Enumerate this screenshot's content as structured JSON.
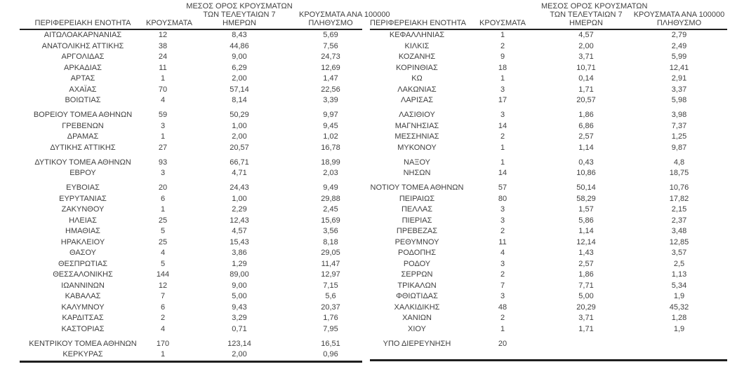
{
  "colors": {
    "text": "#3f3f3f",
    "border": "#1f1f1f",
    "background": "#ffffff"
  },
  "headers": {
    "region": "ΠΕΡΙΦΕΡΕΙΑΚΗ ΕΝΟΤΗΤΑ",
    "cases": "ΚΡΟΥΣΜΑΤΑ",
    "avg7_line1": "ΜΕΣΟΣ ΟΡΟΣ ΚΡΟΥΣΜΑΤΩΝ",
    "avg7_line2": "ΤΩΝ ΤΕΛΕΥΤΑΙΩΝ 7",
    "avg7_line3": "ΗΜΕΡΩΝ",
    "per100k_line1": "ΚΡΟΥΣΜΑΤΑ ΑΝΑ 100000",
    "per100k_line2": "ΠΛΗΘΥΣΜΟ"
  },
  "left_table": {
    "sections": [
      {
        "rows": [
          [
            "ΑΙΤΩΛΟΑΚΑΡΝΑΝΙΑΣ",
            "12",
            "8,43",
            "5,69"
          ],
          [
            "ΑΝΑΤΟΛΙΚΗΣ ΑΤΤΙΚΗΣ",
            "38",
            "44,86",
            "7,56"
          ],
          [
            "ΑΡΓΟΛΙΔΑΣ",
            "24",
            "9,00",
            "24,73"
          ],
          [
            "ΑΡΚΑΔΙΑΣ",
            "11",
            "6,29",
            "12,69"
          ],
          [
            "ΑΡΤΑΣ",
            "1",
            "2,00",
            "1,47"
          ],
          [
            "ΑΧΑΪΑΣ",
            "70",
            "57,14",
            "22,56"
          ],
          [
            "ΒΟΙΩΤΙΑΣ",
            "4",
            "8,14",
            "3,39"
          ]
        ]
      },
      {
        "rows": [
          [
            "ΒΟΡΕΙΟΥ ΤΟΜΕΑ ΑΘΗΝΩΝ",
            "59",
            "50,29",
            "9,97"
          ],
          [
            "ΓΡΕΒΕΝΩΝ",
            "3",
            "1,00",
            "9,45"
          ],
          [
            "ΔΡΑΜΑΣ",
            "1",
            "2,00",
            "1,02"
          ],
          [
            "ΔΥΤΙΚΗΣ ΑΤΤΙΚΗΣ",
            "27",
            "20,57",
            "16,78"
          ]
        ]
      },
      {
        "rows": [
          [
            "ΔΥΤΙΚΟΥ ΤΟΜΕΑ ΑΘΗΝΩΝ",
            "93",
            "66,71",
            "18,99"
          ],
          [
            "ΕΒΡΟΥ",
            "3",
            "4,71",
            "2,03"
          ]
        ]
      },
      {
        "rows": [
          [
            "ΕΥΒΟΙΑΣ",
            "20",
            "24,43",
            "9,49"
          ],
          [
            "ΕΥΡΥΤΑΝΙΑΣ",
            "6",
            "1,00",
            "29,88"
          ],
          [
            "ΖΑΚΥΝΘΟΥ",
            "1",
            "2,29",
            "2,45"
          ],
          [
            "ΗΛΕΙΑΣ",
            "25",
            "12,43",
            "15,69"
          ],
          [
            "ΗΜΑΘΙΑΣ",
            "5",
            "4,57",
            "3,56"
          ],
          [
            "ΗΡΑΚΛΕΙΟΥ",
            "25",
            "15,43",
            "8,18"
          ],
          [
            "ΘΑΣΟΥ",
            "4",
            "3,86",
            "29,05"
          ],
          [
            "ΘΕΣΠΡΩΤΙΑΣ",
            "5",
            "1,29",
            "11,47"
          ],
          [
            "ΘΕΣΣΑΛΟΝΙΚΗΣ",
            "144",
            "89,00",
            "12,97"
          ],
          [
            "ΙΩΑΝΝΙΝΩΝ",
            "12",
            "9,00",
            "7,15"
          ],
          [
            "ΚΑΒΑΛΑΣ",
            "7",
            "5,00",
            "5,6"
          ],
          [
            "ΚΑΛΥΜΝΟΥ",
            "6",
            "9,43",
            "20,37"
          ],
          [
            "ΚΑΡΔΙΤΣΑΣ",
            "2",
            "3,29",
            "1,76"
          ],
          [
            "ΚΑΣΤΟΡΙΑΣ",
            "4",
            "0,71",
            "7,95"
          ]
        ]
      },
      {
        "rows": [
          [
            "ΚΕΝΤΡΙΚΟΥ ΤΟΜΕΑ ΑΘΗΝΩΝ",
            "170",
            "123,14",
            "16,51"
          ],
          [
            "ΚΕΡΚΥΡΑΣ",
            "1",
            "2,00",
            "0,96"
          ]
        ]
      }
    ]
  },
  "right_table": {
    "sections": [
      {
        "rows": [
          [
            "ΚΕΦΑΛΛΗΝΙΑΣ",
            "1",
            "4,57",
            "2,79"
          ],
          [
            "ΚΙΛΚΙΣ",
            "2",
            "2,00",
            "2,49"
          ],
          [
            "ΚΟΖΑΝΗΣ",
            "9",
            "3,71",
            "5,99"
          ],
          [
            "ΚΟΡΙΝΘΙΑΣ",
            "18",
            "10,71",
            "12,41"
          ],
          [
            "ΚΩ",
            "1",
            "0,14",
            "2,91"
          ],
          [
            "ΛΑΚΩΝΙΑΣ",
            "3",
            "1,71",
            "3,37"
          ],
          [
            "ΛΑΡΙΣΑΣ",
            "17",
            "20,57",
            "5,98"
          ]
        ]
      },
      {
        "rows": [
          [
            "ΛΑΣΙΘΙΟΥ",
            "3",
            "1,86",
            "3,98"
          ],
          [
            "ΜΑΓΝΗΣΙΑΣ",
            "14",
            "6,86",
            "7,37"
          ],
          [
            "ΜΕΣΣΗΝΙΑΣ",
            "2",
            "2,57",
            "1,25"
          ],
          [
            "ΜΥΚΟΝΟΥ",
            "1",
            "1,14",
            "9,87"
          ]
        ]
      },
      {
        "rows": [
          [
            "ΝΑΞΟΥ",
            "1",
            "0,43",
            "4,8"
          ],
          [
            "ΝΗΣΩΝ",
            "14",
            "10,86",
            "18,75"
          ]
        ]
      },
      {
        "rows": [
          [
            "ΝΟΤΙΟΥ ΤΟΜΕΑ ΑΘΗΝΩΝ",
            "57",
            "50,14",
            "10,76"
          ],
          [
            "ΠΕΙΡΑΙΩΣ",
            "80",
            "58,29",
            "17,82"
          ],
          [
            "ΠΕΛΛΑΣ",
            "3",
            "1,57",
            "2,15"
          ],
          [
            "ΠΙΕΡΙΑΣ",
            "3",
            "5,86",
            "2,37"
          ],
          [
            "ΠΡΕΒΕΖΑΣ",
            "2",
            "1,14",
            "3,48"
          ],
          [
            "ΡΕΘΥΜΝΟΥ",
            "11",
            "12,14",
            "12,85"
          ],
          [
            "ΡΟΔΟΠΗΣ",
            "4",
            "1,43",
            "3,57"
          ],
          [
            "ΡΟΔΟΥ",
            "3",
            "2,57",
            "2,5"
          ],
          [
            "ΣΕΡΡΩΝ",
            "2",
            "1,86",
            "1,13"
          ],
          [
            "ΤΡΙΚΑΛΩΝ",
            "7",
            "7,71",
            "5,34"
          ],
          [
            "ΦΘΙΩΤΙΔΑΣ",
            "3",
            "5,00",
            "1,9"
          ],
          [
            "ΧΑΛΚΙΔΙΚΗΣ",
            "48",
            "20,29",
            "45,32"
          ],
          [
            "ΧΑΝΙΩΝ",
            "2",
            "3,71",
            "1,28"
          ],
          [
            "ΧΙΟΥ",
            "1",
            "1,71",
            "1,9"
          ]
        ]
      },
      {
        "rows": [
          [
            "ΥΠΟ ΔΙΕΡΕΥΝΗΣΗ",
            "20",
            "",
            ""
          ],
          [
            "",
            "",
            "",
            ""
          ]
        ]
      }
    ]
  }
}
